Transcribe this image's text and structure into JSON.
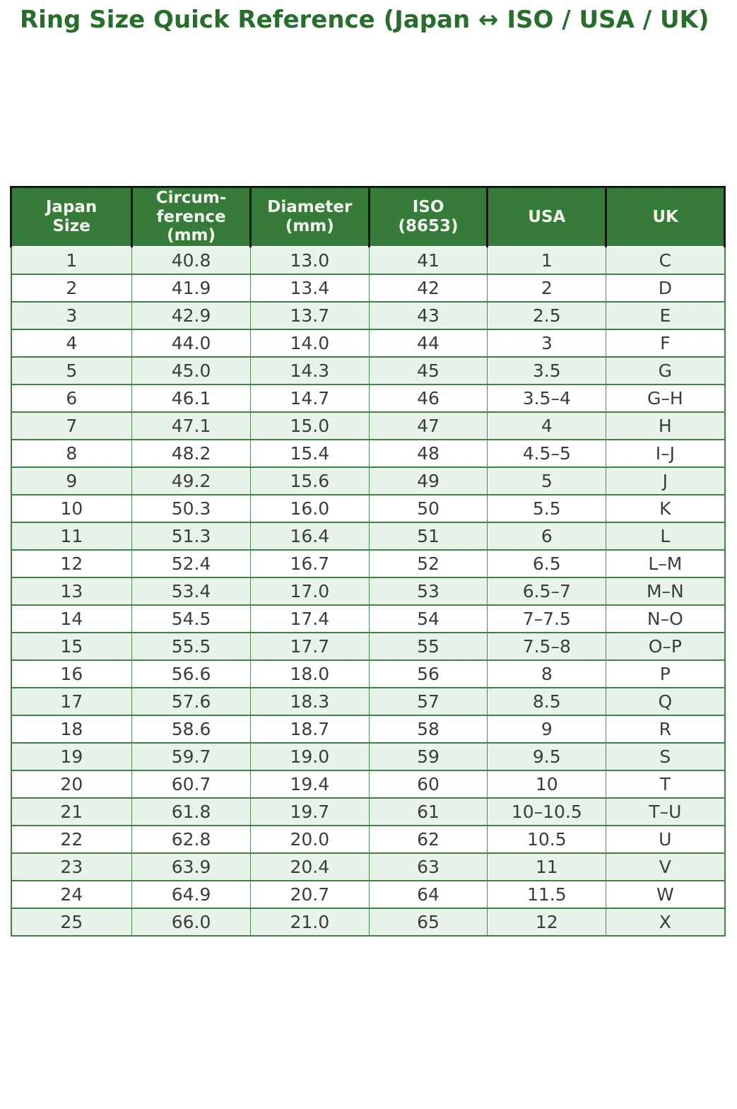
{
  "title": "Ring Size Quick Reference (Japan ↔ ISO / USA / UK)",
  "colors": {
    "title_green": "#276d2b",
    "header_bg": "#377b3a",
    "header_text": "#f2f4ee",
    "header_border": "#161616",
    "body_border_green": "#4c8a51",
    "row_stripe_green": "#e8f3e9",
    "cell_text": "#3c3c3c",
    "page_bg": "#ffffff"
  },
  "table": {
    "columns": [
      {
        "id": "japan-size",
        "lines": [
          "Japan",
          "Size"
        ]
      },
      {
        "id": "circumference-mm",
        "lines": [
          "Circum-",
          "ference",
          "(mm)"
        ]
      },
      {
        "id": "diameter-mm",
        "lines": [
          "Diameter",
          "(mm)"
        ]
      },
      {
        "id": "iso-8653",
        "lines": [
          "ISO",
          "(8653)"
        ]
      },
      {
        "id": "usa",
        "lines": [
          "USA"
        ]
      },
      {
        "id": "uk",
        "lines": [
          "UK"
        ]
      }
    ],
    "rows": [
      [
        "1",
        "40.8",
        "13.0",
        "41",
        "1",
        "C"
      ],
      [
        "2",
        "41.9",
        "13.4",
        "42",
        "2",
        "D"
      ],
      [
        "3",
        "42.9",
        "13.7",
        "43",
        "2.5",
        "E"
      ],
      [
        "4",
        "44.0",
        "14.0",
        "44",
        "3",
        "F"
      ],
      [
        "5",
        "45.0",
        "14.3",
        "45",
        "3.5",
        "G"
      ],
      [
        "6",
        "46.1",
        "14.7",
        "46",
        "3.5–4",
        "G–H"
      ],
      [
        "7",
        "47.1",
        "15.0",
        "47",
        "4",
        "H"
      ],
      [
        "8",
        "48.2",
        "15.4",
        "48",
        "4.5–5",
        "I–J"
      ],
      [
        "9",
        "49.2",
        "15.6",
        "49",
        "5",
        "J"
      ],
      [
        "10",
        "50.3",
        "16.0",
        "50",
        "5.5",
        "K"
      ],
      [
        "11",
        "51.3",
        "16.4",
        "51",
        "6",
        "L"
      ],
      [
        "12",
        "52.4",
        "16.7",
        "52",
        "6.5",
        "L–M"
      ],
      [
        "13",
        "53.4",
        "17.0",
        "53",
        "6.5–7",
        "M–N"
      ],
      [
        "14",
        "54.5",
        "17.4",
        "54",
        "7–7.5",
        "N–O"
      ],
      [
        "15",
        "55.5",
        "17.7",
        "55",
        "7.5–8",
        "O–P"
      ],
      [
        "16",
        "56.6",
        "18.0",
        "56",
        "8",
        "P"
      ],
      [
        "17",
        "57.6",
        "18.3",
        "57",
        "8.5",
        "Q"
      ],
      [
        "18",
        "58.6",
        "18.7",
        "58",
        "9",
        "R"
      ],
      [
        "19",
        "59.7",
        "19.0",
        "59",
        "9.5",
        "S"
      ],
      [
        "20",
        "60.7",
        "19.4",
        "60",
        "10",
        "T"
      ],
      [
        "21",
        "61.8",
        "19.7",
        "61",
        "10–10.5",
        "T–U"
      ],
      [
        "22",
        "62.8",
        "20.0",
        "62",
        "10.5",
        "U"
      ],
      [
        "23",
        "63.9",
        "20.4",
        "63",
        "11",
        "V"
      ],
      [
        "24",
        "64.9",
        "20.7",
        "64",
        "11.5",
        "W"
      ],
      [
        "25",
        "66.0",
        "21.0",
        "65",
        "12",
        "X"
      ]
    ]
  }
}
